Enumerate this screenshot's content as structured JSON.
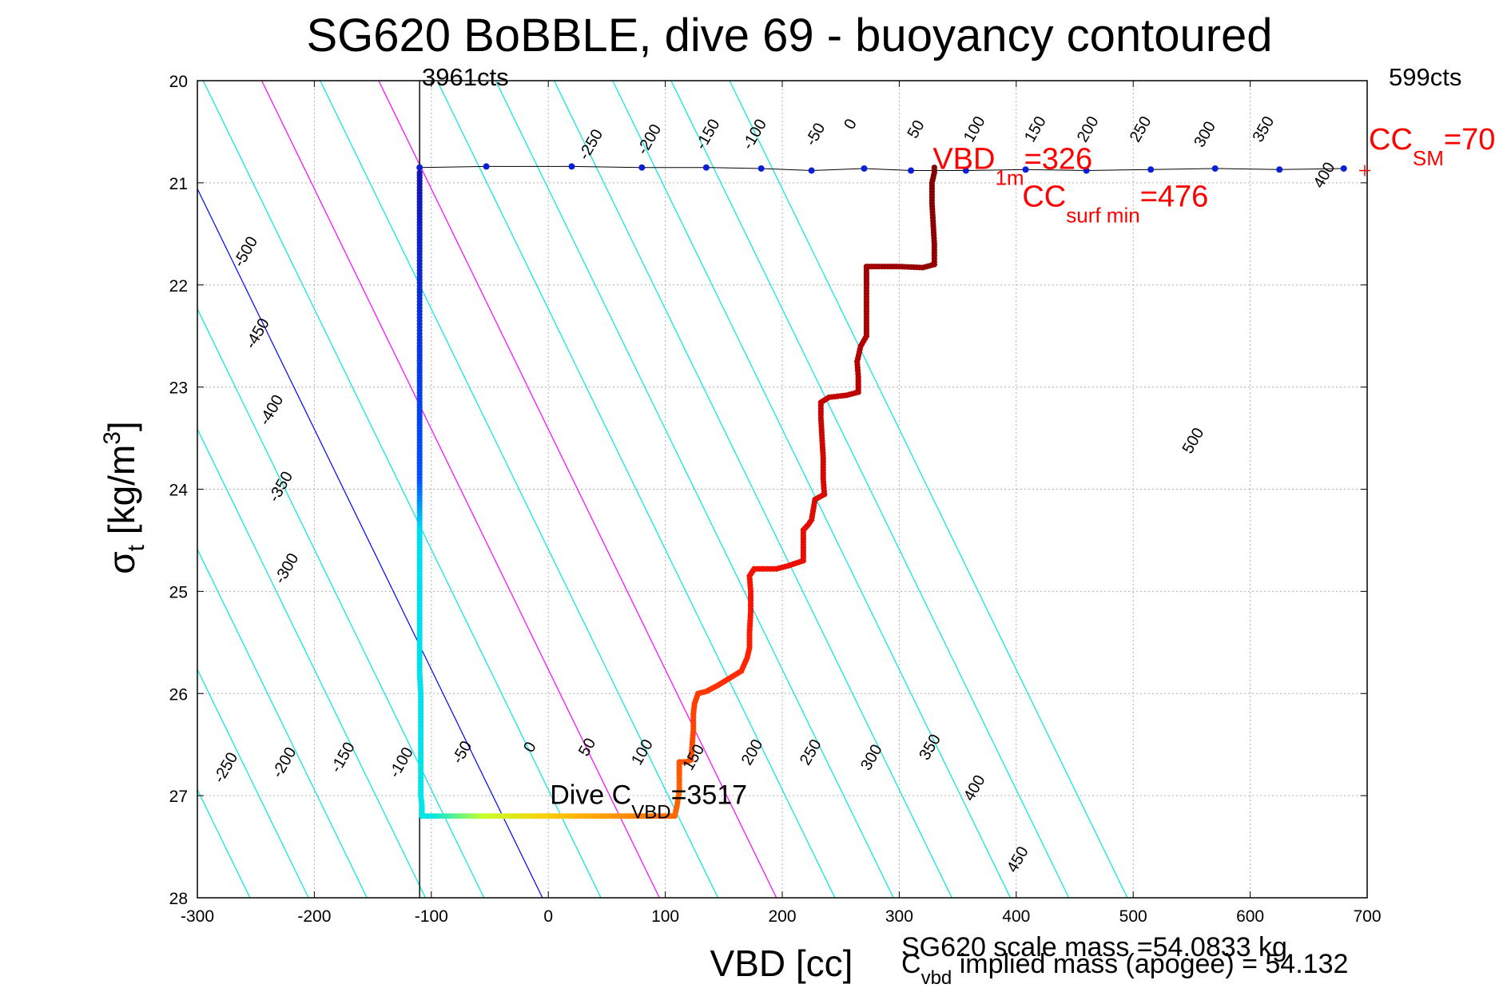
{
  "chart_data": {
    "type": "scatter",
    "title": "SG620 BoBBLE, dive 69 - buoyancy contoured",
    "xlabel": "VBD [cc]",
    "ylabel": {
      "main": "σ",
      "sub": "t",
      "unit_prefix": " [kg/m",
      "unit_sup": "3",
      "unit_suffix": "]"
    },
    "xlim": [
      -300,
      700
    ],
    "ylim": [
      20,
      28
    ],
    "y_reversed": true,
    "grid": true,
    "x_ticks": [
      -300,
      -200,
      -100,
      0,
      100,
      200,
      300,
      400,
      500,
      600,
      700
    ],
    "y_ticks": [
      20,
      21,
      22,
      23,
      24,
      25,
      26,
      27,
      28
    ],
    "top_left_label": "3961cts",
    "top_right_label": "599cts",
    "contours": {
      "levels": [
        -500,
        -450,
        -400,
        -350,
        -300,
        -250,
        -200,
        -150,
        -100,
        -50,
        0,
        50,
        100,
        150,
        200,
        250,
        300,
        350,
        400,
        450,
        500
      ],
      "slope_cc_per_sigma": 42.5,
      "colors": {
        "default": "#00e5e5",
        "zero": "#0000ff",
        "highlight": "#ff00ff"
      },
      "highlight_levels": [
        100,
        200
      ],
      "upper_labels": [
        {
          "level": -500,
          "vbd": -255,
          "sigma": 21.7
        },
        {
          "level": -450,
          "vbd": -245,
          "sigma": 22.5
        },
        {
          "level": -400,
          "vbd": -233,
          "sigma": 23.25
        },
        {
          "level": -350,
          "vbd": -225,
          "sigma": 24.0
        },
        {
          "level": -300,
          "vbd": -220,
          "sigma": 24.8
        },
        {
          "level": -250,
          "vbd": 40,
          "sigma": 20.65
        },
        {
          "level": -200,
          "vbd": 90,
          "sigma": 20.6
        },
        {
          "level": -150,
          "vbd": 140,
          "sigma": 20.55
        },
        {
          "level": -100,
          "vbd": 180,
          "sigma": 20.55
        },
        {
          "level": -50,
          "vbd": 232,
          "sigma": 20.55
        },
        {
          "level": 0,
          "vbd": 262,
          "sigma": 20.45
        },
        {
          "level": 50,
          "vbd": 318,
          "sigma": 20.5
        },
        {
          "level": 100,
          "vbd": 368,
          "sigma": 20.5
        },
        {
          "level": 150,
          "vbd": 420,
          "sigma": 20.5
        },
        {
          "level": 200,
          "vbd": 465,
          "sigma": 20.5
        },
        {
          "level": 250,
          "vbd": 510,
          "sigma": 20.5
        },
        {
          "level": 300,
          "vbd": 565,
          "sigma": 20.55
        },
        {
          "level": 350,
          "vbd": 615,
          "sigma": 20.5
        },
        {
          "level": 400,
          "vbd": 667,
          "sigma": 20.95
        },
        {
          "level": 500,
          "vbd": 555,
          "sigma": 23.55
        }
      ],
      "lower_labels": [
        {
          "level": -250,
          "vbd": -272,
          "sigma": 26.75
        },
        {
          "level": -200,
          "vbd": -222,
          "sigma": 26.7
        },
        {
          "level": -150,
          "vbd": -172,
          "sigma": 26.65
        },
        {
          "level": -100,
          "vbd": -122,
          "sigma": 26.7
        },
        {
          "level": -50,
          "vbd": -70,
          "sigma": 26.6
        },
        {
          "level": 0,
          "vbd": -12,
          "sigma": 26.55
        },
        {
          "level": 50,
          "vbd": 37,
          "sigma": 26.55
        },
        {
          "level": 100,
          "vbd": 84,
          "sigma": 26.6
        },
        {
          "level": 150,
          "vbd": 128,
          "sigma": 26.65
        },
        {
          "level": 200,
          "vbd": 178,
          "sigma": 26.6
        },
        {
          "level": 250,
          "vbd": 228,
          "sigma": 26.6
        },
        {
          "level": 300,
          "vbd": 280,
          "sigma": 26.65
        },
        {
          "level": 350,
          "vbd": 330,
          "sigma": 26.55
        },
        {
          "level": 400,
          "vbd": 368,
          "sigma": 26.95
        },
        {
          "level": 450,
          "vbd": 405,
          "sigma": 27.65
        }
      ]
    },
    "surface_line": [
      [
        -110,
        20.85
      ],
      [
        -53,
        20.84
      ],
      [
        20,
        20.84
      ],
      [
        80,
        20.85
      ],
      [
        135,
        20.85
      ],
      [
        182,
        20.86
      ],
      [
        225,
        20.88
      ],
      [
        270,
        20.86
      ],
      [
        310,
        20.88
      ],
      [
        357,
        20.88
      ],
      [
        408,
        20.87
      ],
      [
        460,
        20.88
      ],
      [
        515,
        20.87
      ],
      [
        570,
        20.86
      ],
      [
        625,
        20.87
      ],
      [
        680,
        20.86
      ]
    ],
    "vertical_line": {
      "vbd": -110,
      "sigma_from": 20,
      "sigma_to": 28
    },
    "profile": [
      [
        330,
        20.85
      ],
      [
        330,
        20.9
      ],
      [
        328,
        21.0
      ],
      [
        328,
        21.2
      ],
      [
        329,
        21.4
      ],
      [
        330,
        21.6
      ],
      [
        330,
        21.8
      ],
      [
        320,
        21.83
      ],
      [
        300,
        21.82
      ],
      [
        283,
        21.82
      ],
      [
        272,
        21.82
      ],
      [
        272,
        21.9
      ],
      [
        272,
        22.0
      ],
      [
        272,
        22.2
      ],
      [
        272,
        22.4
      ],
      [
        272,
        22.5
      ],
      [
        267,
        22.6
      ],
      [
        264,
        22.75
      ],
      [
        265,
        22.9
      ],
      [
        265,
        23.0
      ],
      [
        265,
        23.05
      ],
      [
        255,
        23.08
      ],
      [
        240,
        23.1
      ],
      [
        233,
        23.15
      ],
      [
        233,
        23.3
      ],
      [
        234,
        23.5
      ],
      [
        235,
        23.7
      ],
      [
        235,
        23.9
      ],
      [
        236,
        24.05
      ],
      [
        228,
        24.1
      ],
      [
        225,
        24.3
      ],
      [
        222,
        24.35
      ],
      [
        218,
        24.4
      ],
      [
        218,
        24.6
      ],
      [
        218,
        24.7
      ],
      [
        205,
        24.75
      ],
      [
        195,
        24.78
      ],
      [
        185,
        24.78
      ],
      [
        176,
        24.78
      ],
      [
        172,
        24.85
      ],
      [
        173,
        25.0
      ],
      [
        173,
        25.2
      ],
      [
        172,
        25.4
      ],
      [
        172,
        25.55
      ],
      [
        170,
        25.65
      ],
      [
        165,
        25.78
      ],
      [
        155,
        25.85
      ],
      [
        145,
        25.92
      ],
      [
        135,
        25.98
      ],
      [
        128,
        26.0
      ],
      [
        125,
        26.1
      ],
      [
        124,
        26.2
      ],
      [
        124,
        26.35
      ],
      [
        123,
        26.5
      ],
      [
        122,
        26.65
      ],
      [
        118,
        26.67
      ],
      [
        112,
        26.67
      ],
      [
        112,
        26.8
      ],
      [
        112,
        26.95
      ],
      [
        110,
        27.1
      ],
      [
        108,
        27.2
      ],
      [
        80,
        27.2
      ],
      [
        60,
        27.2
      ],
      [
        40,
        27.2
      ],
      [
        20,
        27.2
      ],
      [
        0,
        27.2
      ],
      [
        -20,
        27.2
      ],
      [
        -40,
        27.2
      ],
      [
        -60,
        27.2
      ],
      [
        -80,
        27.2
      ],
      [
        -100,
        27.2
      ],
      [
        -108,
        27.2
      ],
      [
        -108,
        27.1
      ],
      [
        -109,
        27.0
      ],
      [
        -109,
        26.8
      ],
      [
        -109,
        26.6
      ],
      [
        -109,
        26.4
      ],
      [
        -109,
        26.2
      ],
      [
        -109,
        26.0
      ],
      [
        -110,
        25.8
      ],
      [
        -110,
        25.6
      ],
      [
        -110,
        25.4
      ],
      [
        -110,
        25.2
      ],
      [
        -110,
        25.0
      ],
      [
        -110,
        24.8
      ],
      [
        -110,
        24.6
      ],
      [
        -110,
        24.4
      ],
      [
        -110,
        24.2
      ],
      [
        -110,
        24.0
      ],
      [
        -110,
        23.8
      ],
      [
        -110,
        23.6
      ],
      [
        -110,
        23.4
      ],
      [
        -110,
        23.2
      ],
      [
        -110,
        23.0
      ],
      [
        -110,
        22.8
      ],
      [
        -110,
        22.6
      ],
      [
        -110,
        22.1
      ],
      [
        -110,
        21.95
      ],
      [
        -110,
        21.7
      ],
      [
        -110,
        21.5
      ],
      [
        -110,
        21.3
      ],
      [
        -110,
        21.1
      ],
      [
        -110,
        20.95
      ],
      [
        -110,
        20.9
      ]
    ],
    "annotations": {
      "vbd_1m": {
        "main": "VBD",
        "sub": "1m",
        "value": "=326",
        "vbd": 330,
        "sigma": 20.85
      },
      "cc_surf_min": {
        "main": "CC",
        "sub": "surf min",
        "value": "=476",
        "vbd": 468,
        "sigma": 20.98
      },
      "cc_sm": {
        "main": "CC",
        "sub": "SM",
        "value": "=70",
        "vbd": 700,
        "sigma": 20.75
      },
      "dive_c_vbd": {
        "main": "Dive C",
        "sub": "VBD",
        "value": "=3517",
        "vbd": 0,
        "sigma": 27.12
      }
    },
    "footer_scale_mass": "SG620 scale mass =54.0833 kg",
    "footer_implied_mass": {
      "main": "C",
      "sub": "vbd",
      "rest": " implied mass (apogee) = 54.132"
    }
  }
}
